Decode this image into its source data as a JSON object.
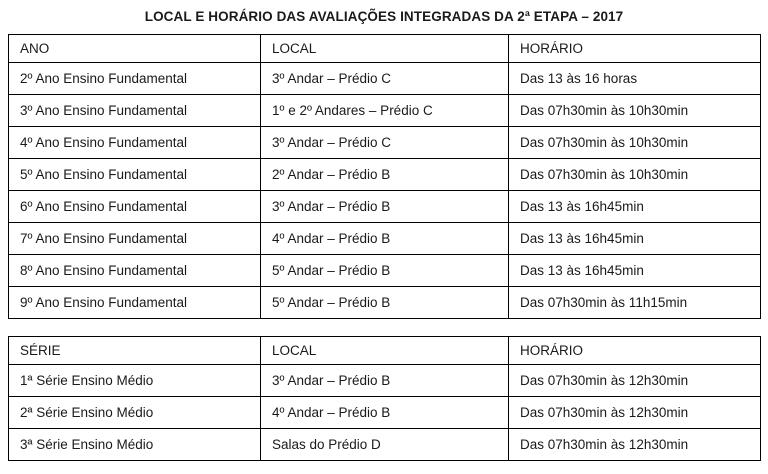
{
  "page": {
    "title": "LOCAL E HORÁRIO DAS AVALIAÇÕES INTEGRADAS DA 2ª ETAPA – 2017"
  },
  "tables": [
    {
      "name": "ensino-fundamental",
      "headers": [
        "ANO",
        "LOCAL",
        "HORÁRIO"
      ],
      "rows": [
        [
          "2º Ano Ensino Fundamental",
          "3º Andar – Prédio C",
          "Das 13 às 16 horas"
        ],
        [
          "3º Ano Ensino Fundamental",
          "1º e 2º Andares – Prédio C",
          "Das 07h30min às 10h30min"
        ],
        [
          "4º Ano Ensino Fundamental",
          "3º Andar – Prédio C",
          "Das 07h30min às 10h30min"
        ],
        [
          "5º Ano Ensino Fundamental",
          "2º Andar – Prédio B",
          "Das 07h30min às 10h30min"
        ],
        [
          "6º Ano Ensino Fundamental",
          "3º Andar – Prédio B",
          "Das 13 às 16h45min"
        ],
        [
          "7º Ano Ensino Fundamental",
          "4º Andar – Prédio B",
          "Das 13 às 16h45min"
        ],
        [
          "8º Ano Ensino Fundamental",
          "5º Andar – Prédio B",
          "Das 13 às 16h45min"
        ],
        [
          "9º Ano Ensino Fundamental",
          "5º Andar – Prédio B",
          "Das 07h30min às 11h15min"
        ]
      ]
    },
    {
      "name": "ensino-medio",
      "headers": [
        "SÉRIE",
        "LOCAL",
        "HORÁRIO"
      ],
      "rows": [
        [
          "1ª Série Ensino Médio",
          "3º Andar – Prédio B",
          "Das 07h30min às 12h30min"
        ],
        [
          "2ª Série Ensino Médio",
          "4º Andar – Prédio B",
          "Das 07h30min às 12h30min"
        ],
        [
          "3ª Série Ensino Médio",
          "Salas do Prédio D",
          "Das 07h30min às 12h30min"
        ]
      ]
    }
  ],
  "colors": {
    "text": "#1a1a1a",
    "border": "#000000",
    "background": "#ffffff"
  }
}
